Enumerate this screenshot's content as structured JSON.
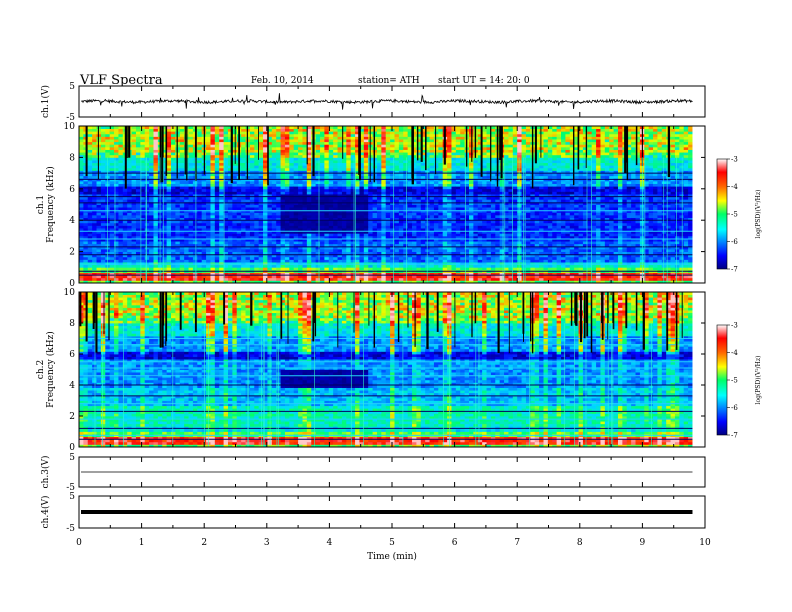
{
  "header": {
    "title": "VLF  Spectra",
    "date": "Feb. 10, 2014",
    "station": "station= ATH",
    "start": "start  UT  =    14: 20: 0"
  },
  "chart_data": [
    {
      "type": "line",
      "panel": "ch1-waveform",
      "ylabel": "ch.1(V)",
      "ylim": [
        -5,
        5
      ],
      "yticks": [
        "5",
        "-5"
      ],
      "xlim": [
        0,
        10
      ],
      "baseline": 0,
      "line_color": "#000000"
    },
    {
      "type": "heatmap",
      "panel": "ch1-spectrogram",
      "ylabel": "ch.1\nFrequency  (kHz)",
      "ylim": [
        0,
        10
      ],
      "yticks": [
        "0",
        "2",
        "4",
        "6",
        "8",
        "10"
      ],
      "xlim": [
        0,
        10
      ],
      "data_xmax": 9.8,
      "quiet_window": {
        "x": [
          3.25,
          4.6
        ],
        "y": [
          3.2,
          5.6
        ]
      },
      "colorbar": {
        "label": "log(PSD)(V²/Hz)",
        "range": [
          -7,
          -3
        ],
        "ticks": [
          "-3",
          "-4",
          "-5",
          "-6",
          "-7"
        ]
      }
    },
    {
      "type": "heatmap",
      "panel": "ch2-spectrogram",
      "ylabel": "ch.2\nFrequency  (kHz)",
      "ylim": [
        0,
        10
      ],
      "yticks": [
        "0",
        "2",
        "4",
        "6",
        "8",
        "10"
      ],
      "xlim": [
        0,
        10
      ],
      "data_xmax": 9.8,
      "quiet_window": {
        "x": [
          3.25,
          4.6
        ],
        "y": [
          3.8,
          5.0
        ]
      },
      "colorbar": {
        "label": "log(PSD)(V²/Hz)",
        "range": [
          -7,
          -3
        ],
        "ticks": [
          "-3",
          "-4",
          "-5",
          "-6",
          "-7"
        ]
      }
    },
    {
      "type": "line",
      "panel": "ch3-waveform",
      "ylabel": "ch.3(V)",
      "ylim": [
        -5,
        5
      ],
      "yticks": [
        "5",
        "-5"
      ],
      "xlim": [
        0,
        10
      ],
      "baseline": 0,
      "line_color": "#000000"
    },
    {
      "type": "line",
      "panel": "ch4-waveform",
      "ylabel": "ch.4(V)",
      "ylim": [
        -5,
        5
      ],
      "yticks": [
        "5",
        "-5"
      ],
      "xlim": [
        0,
        10
      ],
      "baseline": 0,
      "line_color": "#000000"
    }
  ],
  "xaxis": {
    "label": "Time  (min)",
    "ticks": [
      "0",
      "1",
      "2",
      "3",
      "4",
      "5",
      "6",
      "7",
      "8",
      "9",
      "10"
    ]
  }
}
